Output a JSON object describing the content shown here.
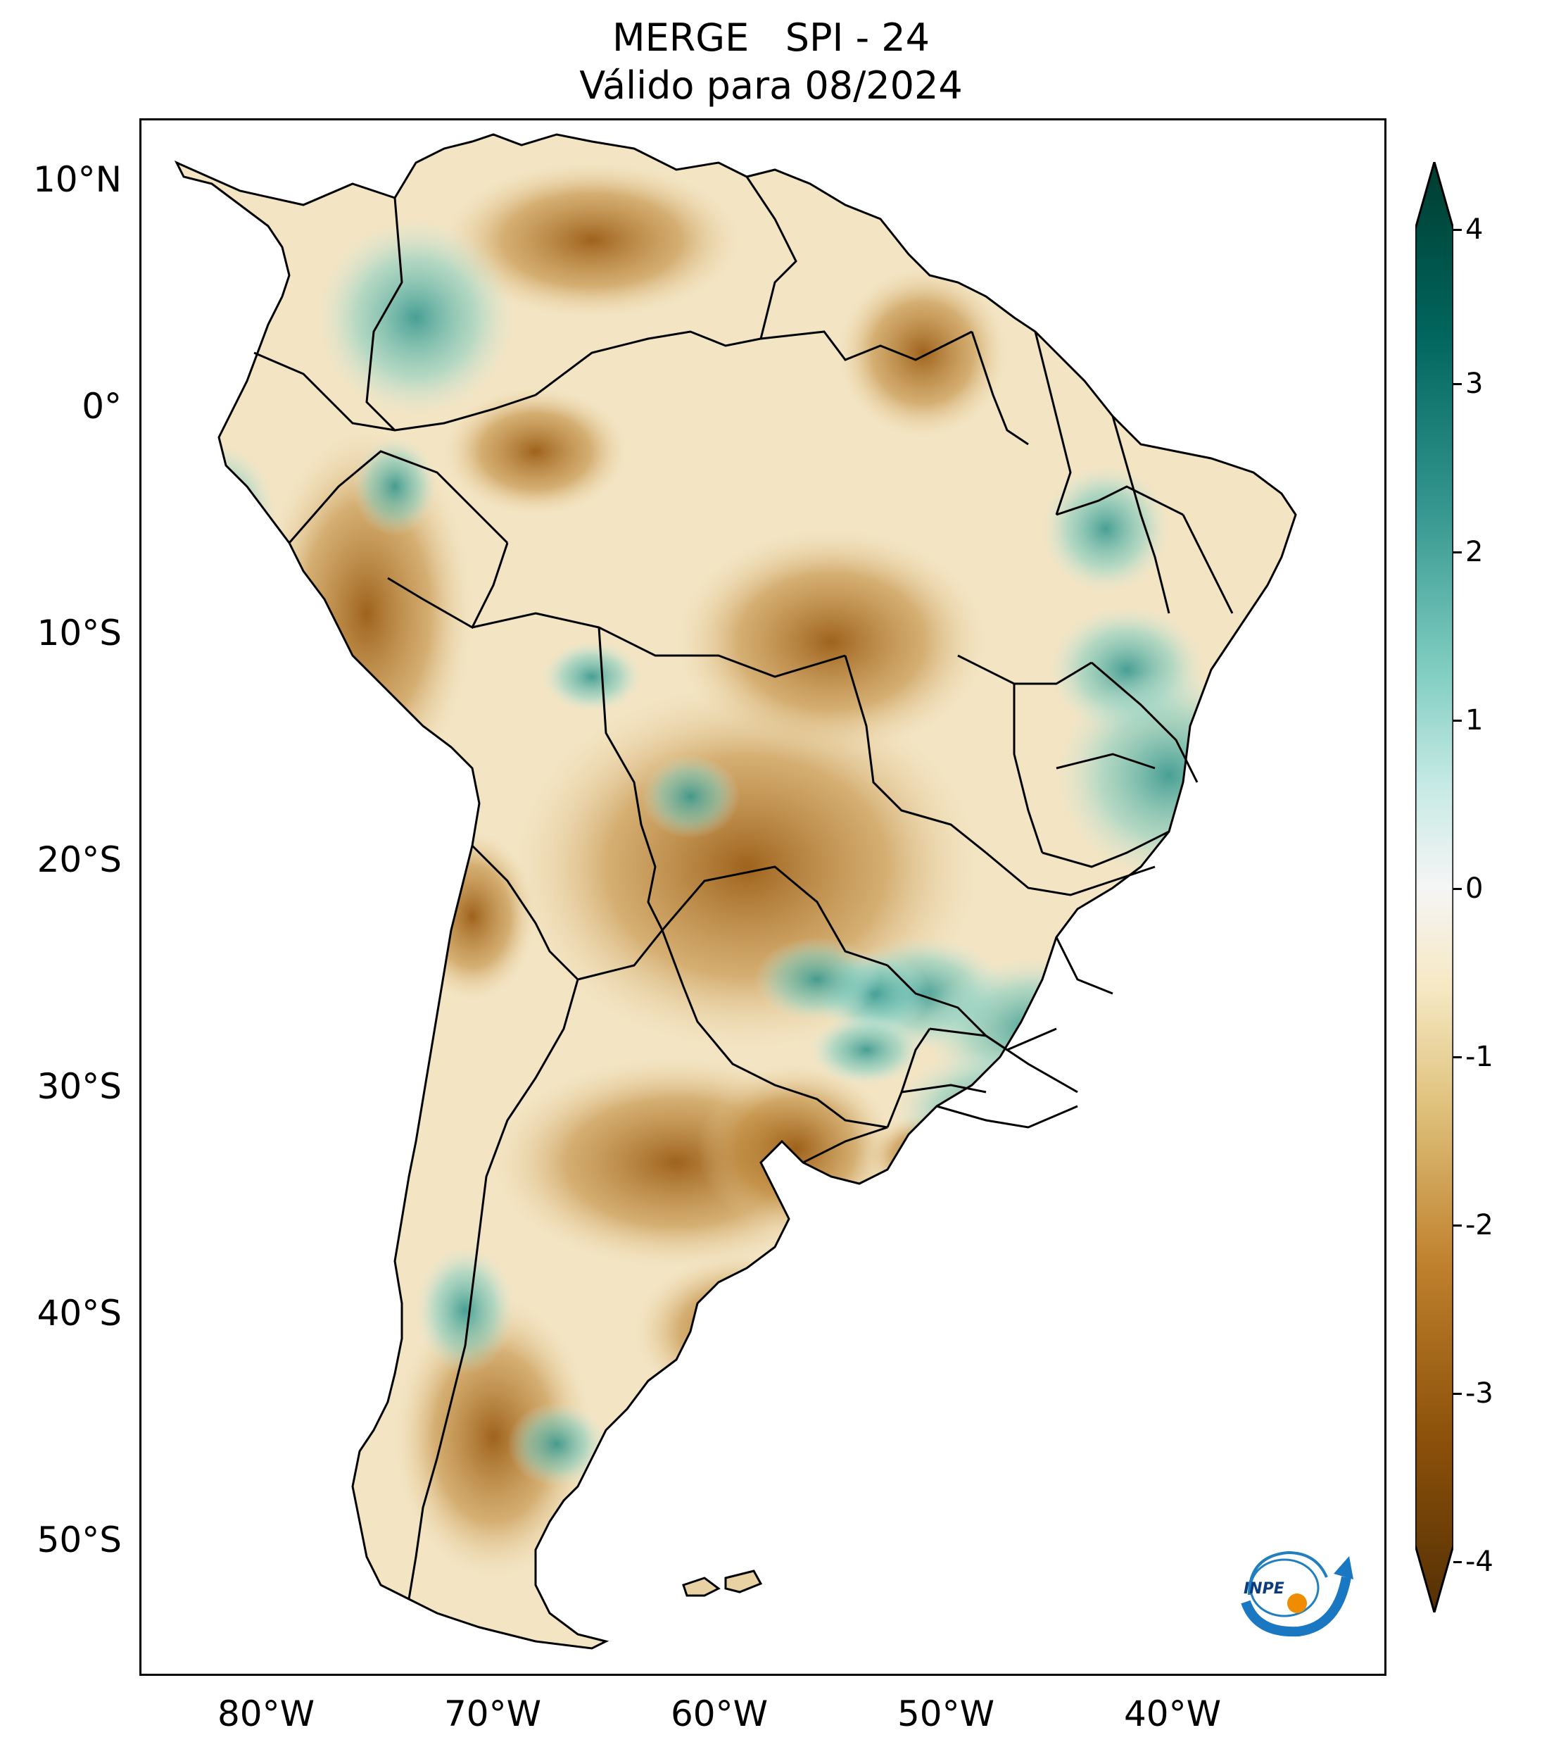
{
  "title": {
    "line1": "MERGE   SPI - 24",
    "line2": "Válido para 08/2024"
  },
  "axes": {
    "lat_labels": [
      "10°N",
      "0°",
      "10°S",
      "20°S",
      "30°S",
      "40°S",
      "50°S"
    ],
    "lon_labels": [
      "80°W",
      "70°W",
      "60°W",
      "50°W",
      "40°W"
    ]
  },
  "colorbar": {
    "ticks": [
      "4",
      "3",
      "2",
      "1",
      "0",
      "-1",
      "-2",
      "-3",
      "-4"
    ],
    "min": -4,
    "max": 4,
    "colors": {
      "very_dry": "#543005",
      "dry": "#8c510a",
      "moderately_dry": "#bf812d",
      "slightly_dry": "#dfc27d",
      "near_normal_dry": "#f6e8c3",
      "normal": "#f5f5f5",
      "near_normal_wet": "#c7eae5",
      "slightly_wet": "#80cdc1",
      "moderately_wet": "#35978f",
      "wet": "#01665e",
      "very_wet": "#003c30"
    }
  },
  "logo": {
    "text": "INPE"
  }
}
